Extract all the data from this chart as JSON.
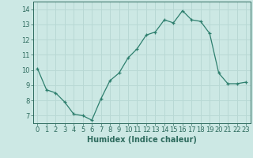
{
  "x": [
    0,
    1,
    2,
    3,
    4,
    5,
    6,
    7,
    8,
    9,
    10,
    11,
    12,
    13,
    14,
    15,
    16,
    17,
    18,
    19,
    20,
    21,
    22,
    23
  ],
  "y": [
    10.1,
    8.7,
    8.5,
    7.9,
    7.1,
    7.0,
    6.7,
    8.1,
    9.3,
    9.8,
    10.8,
    11.4,
    12.3,
    12.5,
    13.3,
    13.1,
    13.9,
    13.3,
    13.2,
    12.4,
    9.8,
    9.1,
    9.1,
    9.2
  ],
  "xlabel": "Humidex (Indice chaleur)",
  "line_color": "#2e7f6e",
  "marker": "+",
  "bg_color": "#cce8e4",
  "grid_color": "#b8d8d4",
  "text_color": "#2e6b5e",
  "ylim": [
    6.5,
    14.5
  ],
  "xlim": [
    -0.5,
    23.5
  ],
  "yticks": [
    7,
    8,
    9,
    10,
    11,
    12,
    13,
    14
  ],
  "xticks": [
    0,
    1,
    2,
    3,
    4,
    5,
    6,
    7,
    8,
    9,
    10,
    11,
    12,
    13,
    14,
    15,
    16,
    17,
    18,
    19,
    20,
    21,
    22,
    23
  ],
  "tick_fontsize": 6.0,
  "xlabel_fontsize": 7.0
}
